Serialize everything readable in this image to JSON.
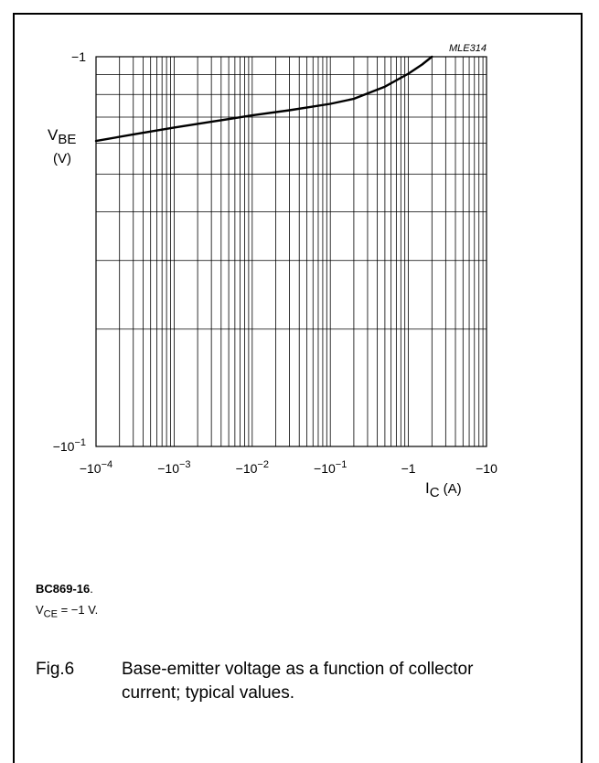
{
  "chart_data": {
    "type": "line",
    "tag": "MLE314",
    "y_axis": {
      "label_main": "V",
      "label_sub": "BE",
      "unit": "(V)",
      "scale": "log",
      "range": [
        -0.1,
        -1
      ],
      "tick_labels": [
        {
          "base": "−10",
          "exp": "−1",
          "value": -0.1
        },
        {
          "base": "−1",
          "exp": "",
          "value": -1
        }
      ]
    },
    "x_axis": {
      "label_main": "I",
      "label_sub": "C",
      "unit": "(A)",
      "scale": "log",
      "range": [
        -0.0001,
        -10
      ],
      "tick_labels": [
        {
          "base": "−10",
          "exp": "−4",
          "value": -0.0001
        },
        {
          "base": "−10",
          "exp": "−3",
          "value": -0.001
        },
        {
          "base": "−10",
          "exp": "−2",
          "value": -0.01
        },
        {
          "base": "−10",
          "exp": "−1",
          "value": -0.1
        },
        {
          "base": "−1",
          "exp": "",
          "value": -1
        },
        {
          "base": "−10",
          "exp": "",
          "value": -10
        }
      ]
    },
    "grid": true,
    "series": [
      {
        "x": [
          -0.0001,
          -0.0003,
          -0.001,
          -0.003,
          -0.01,
          -0.03,
          -0.1,
          -0.2,
          -0.5,
          -1,
          -1.5,
          -2
        ],
        "y": [
          -0.608,
          -0.632,
          -0.658,
          -0.681,
          -0.707,
          -0.729,
          -0.757,
          -0.78,
          -0.838,
          -0.905,
          -0.955,
          -1.0
        ]
      }
    ]
  },
  "notes": {
    "part": "BC869-16",
    "part_suffix": ".",
    "condition_main": "V",
    "condition_sub": "CE",
    "condition_value": " = −1 V."
  },
  "caption": {
    "number": "Fig.6",
    "text": "Base-emitter voltage as a function of collector current; typical values."
  }
}
